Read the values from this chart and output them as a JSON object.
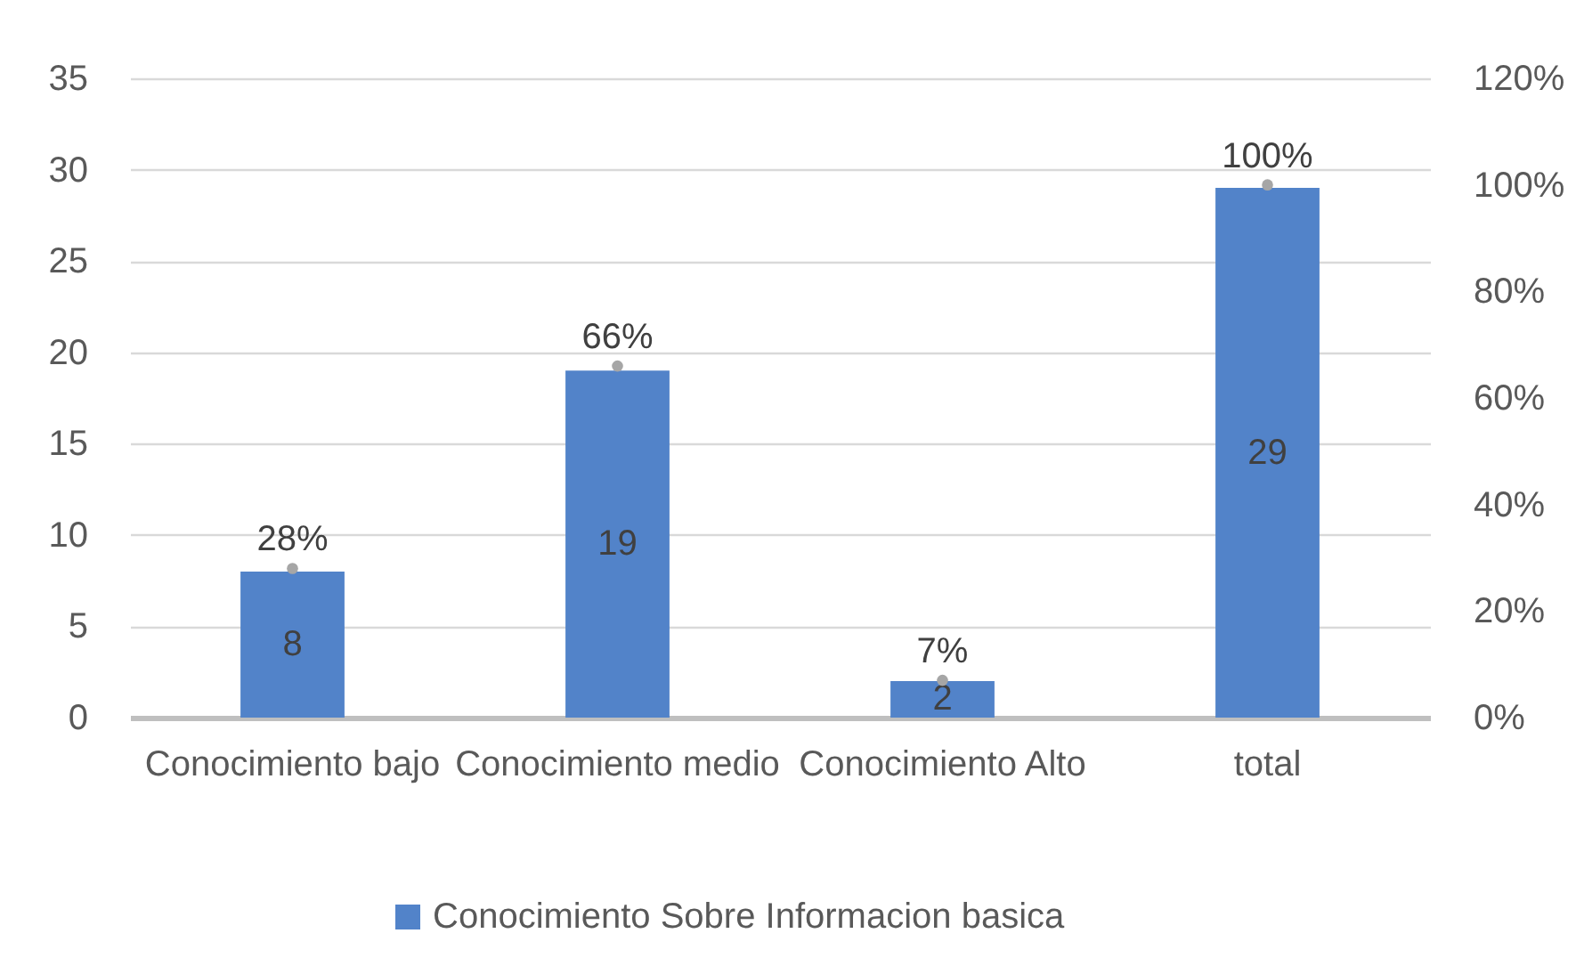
{
  "chart_data": {
    "type": "bar",
    "categories": [
      "Conocimiento bajo",
      "Conocimiento medio",
      "Conocimiento Alto",
      "total"
    ],
    "series": [
      {
        "name": "Conocimiento  Sobre Informacion basica",
        "color": "#5283c9",
        "values": [
          8,
          19,
          2,
          29
        ]
      },
      {
        "type": "scatter",
        "axis": "y2",
        "marker": "circle",
        "color": "#a6a6a6",
        "values": [
          28,
          66,
          7,
          100
        ],
        "value_labels": [
          "28%",
          "66%",
          "7%",
          "100%"
        ]
      }
    ],
    "ylim": [
      0,
      35
    ],
    "yticks": [
      0,
      5,
      10,
      15,
      20,
      25,
      30,
      35
    ],
    "y2lim": [
      0,
      120
    ],
    "y2ticks": [
      {
        "value": 0,
        "label": "0%"
      },
      {
        "value": 20,
        "label": "20%"
      },
      {
        "value": 40,
        "label": "40%"
      },
      {
        "value": 60,
        "label": "60%"
      },
      {
        "value": 80,
        "label": "80%"
      },
      {
        "value": 100,
        "label": "100%"
      },
      {
        "value": 120,
        "label": "120%"
      }
    ],
    "grid": "y",
    "legend": "bottom",
    "data_labels": true
  }
}
